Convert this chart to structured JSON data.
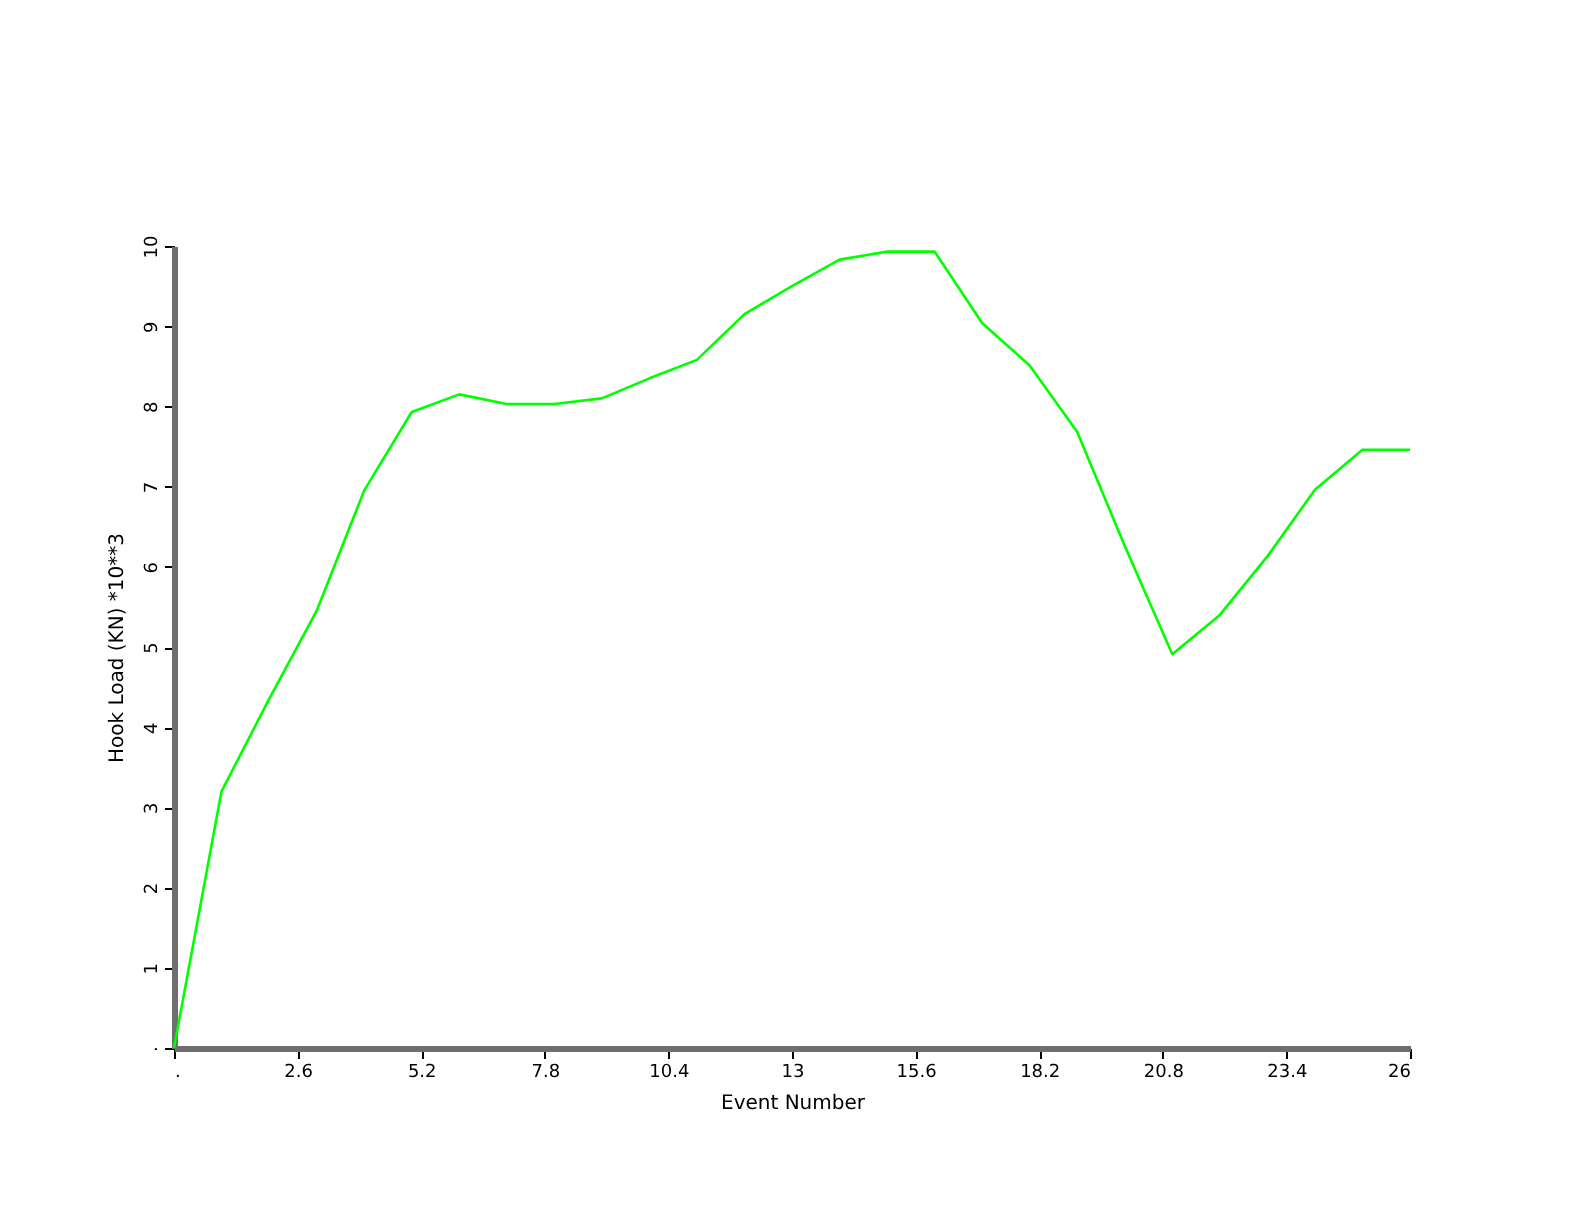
{
  "chart_data": {
    "type": "line",
    "xlabel": "Event Number",
    "ylabel": "Hook Load (KN) *10**3",
    "x": [
      0,
      1,
      2,
      3,
      4,
      5,
      6,
      7,
      8,
      9,
      10,
      11,
      12,
      13,
      14,
      15,
      16,
      17,
      18,
      19,
      20,
      21,
      22,
      23,
      24,
      25,
      26
    ],
    "series": [
      {
        "color": "#00ff00",
        "values": [
          0,
          3.2,
          4.35,
          5.45,
          6.95,
          7.93,
          8.15,
          8.03,
          8.03,
          8.1,
          8.35,
          8.58,
          9.15,
          9.5,
          9.83,
          9.93,
          9.93,
          9.04,
          8.51,
          7.68,
          6.26,
          4.91,
          5.4,
          6.13,
          6.96,
          7.46,
          7.46
        ]
      }
    ],
    "xlim": [
      0,
      26
    ],
    "xticks": [
      {
        "value": 0,
        "label": "."
      },
      2.6,
      5.2,
      7.8,
      10.4,
      13,
      15.6,
      18.2,
      20.8,
      23.4,
      26
    ],
    "ylim": [
      0,
      10
    ],
    "yticks": [
      {
        "value": 0,
        "label": "."
      },
      1,
      2,
      3,
      4,
      5,
      6,
      7,
      8,
      9,
      10
    ],
    "grid": false,
    "marker": "none",
    "line_style": "solid"
  }
}
